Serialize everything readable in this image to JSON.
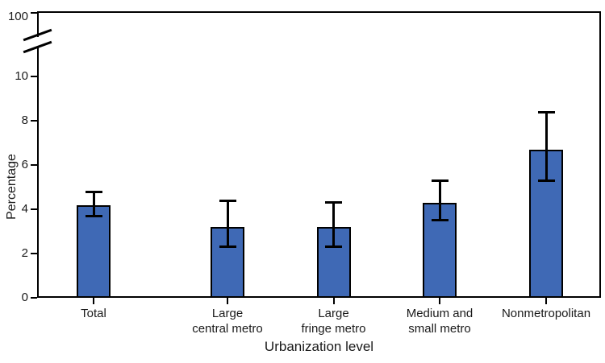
{
  "chart_data": {
    "type": "bar",
    "title": "",
    "xlabel": "Urbanization level",
    "ylabel": "Percentage",
    "categories": [
      "Total",
      "Large central metro",
      "Large fringe metro",
      "Medium and small metro",
      "Nonmetropolitan"
    ],
    "category_label_lines": [
      [
        "Total"
      ],
      [
        "Large",
        "central metro"
      ],
      [
        "Large",
        "fringe metro"
      ],
      [
        "Medium and",
        "small metro"
      ],
      [
        "Nonmetropolitan"
      ]
    ],
    "values": [
      4.2,
      3.2,
      3.2,
      4.3,
      6.7
    ],
    "ci_low": [
      3.7,
      2.3,
      2.3,
      3.5,
      5.3
    ],
    "ci_high": [
      4.8,
      4.4,
      4.3,
      5.3,
      8.4
    ],
    "yticks": [
      0,
      2,
      4,
      6,
      8,
      10
    ],
    "ytick_break_top": "100",
    "axis_break": true,
    "ylim": [
      0,
      10
    ],
    "grid": false,
    "bar_color": "#3F69B5",
    "bar_border_color": "#000000",
    "axis_color": "#000000",
    "text_color": "#1A1A1A"
  }
}
